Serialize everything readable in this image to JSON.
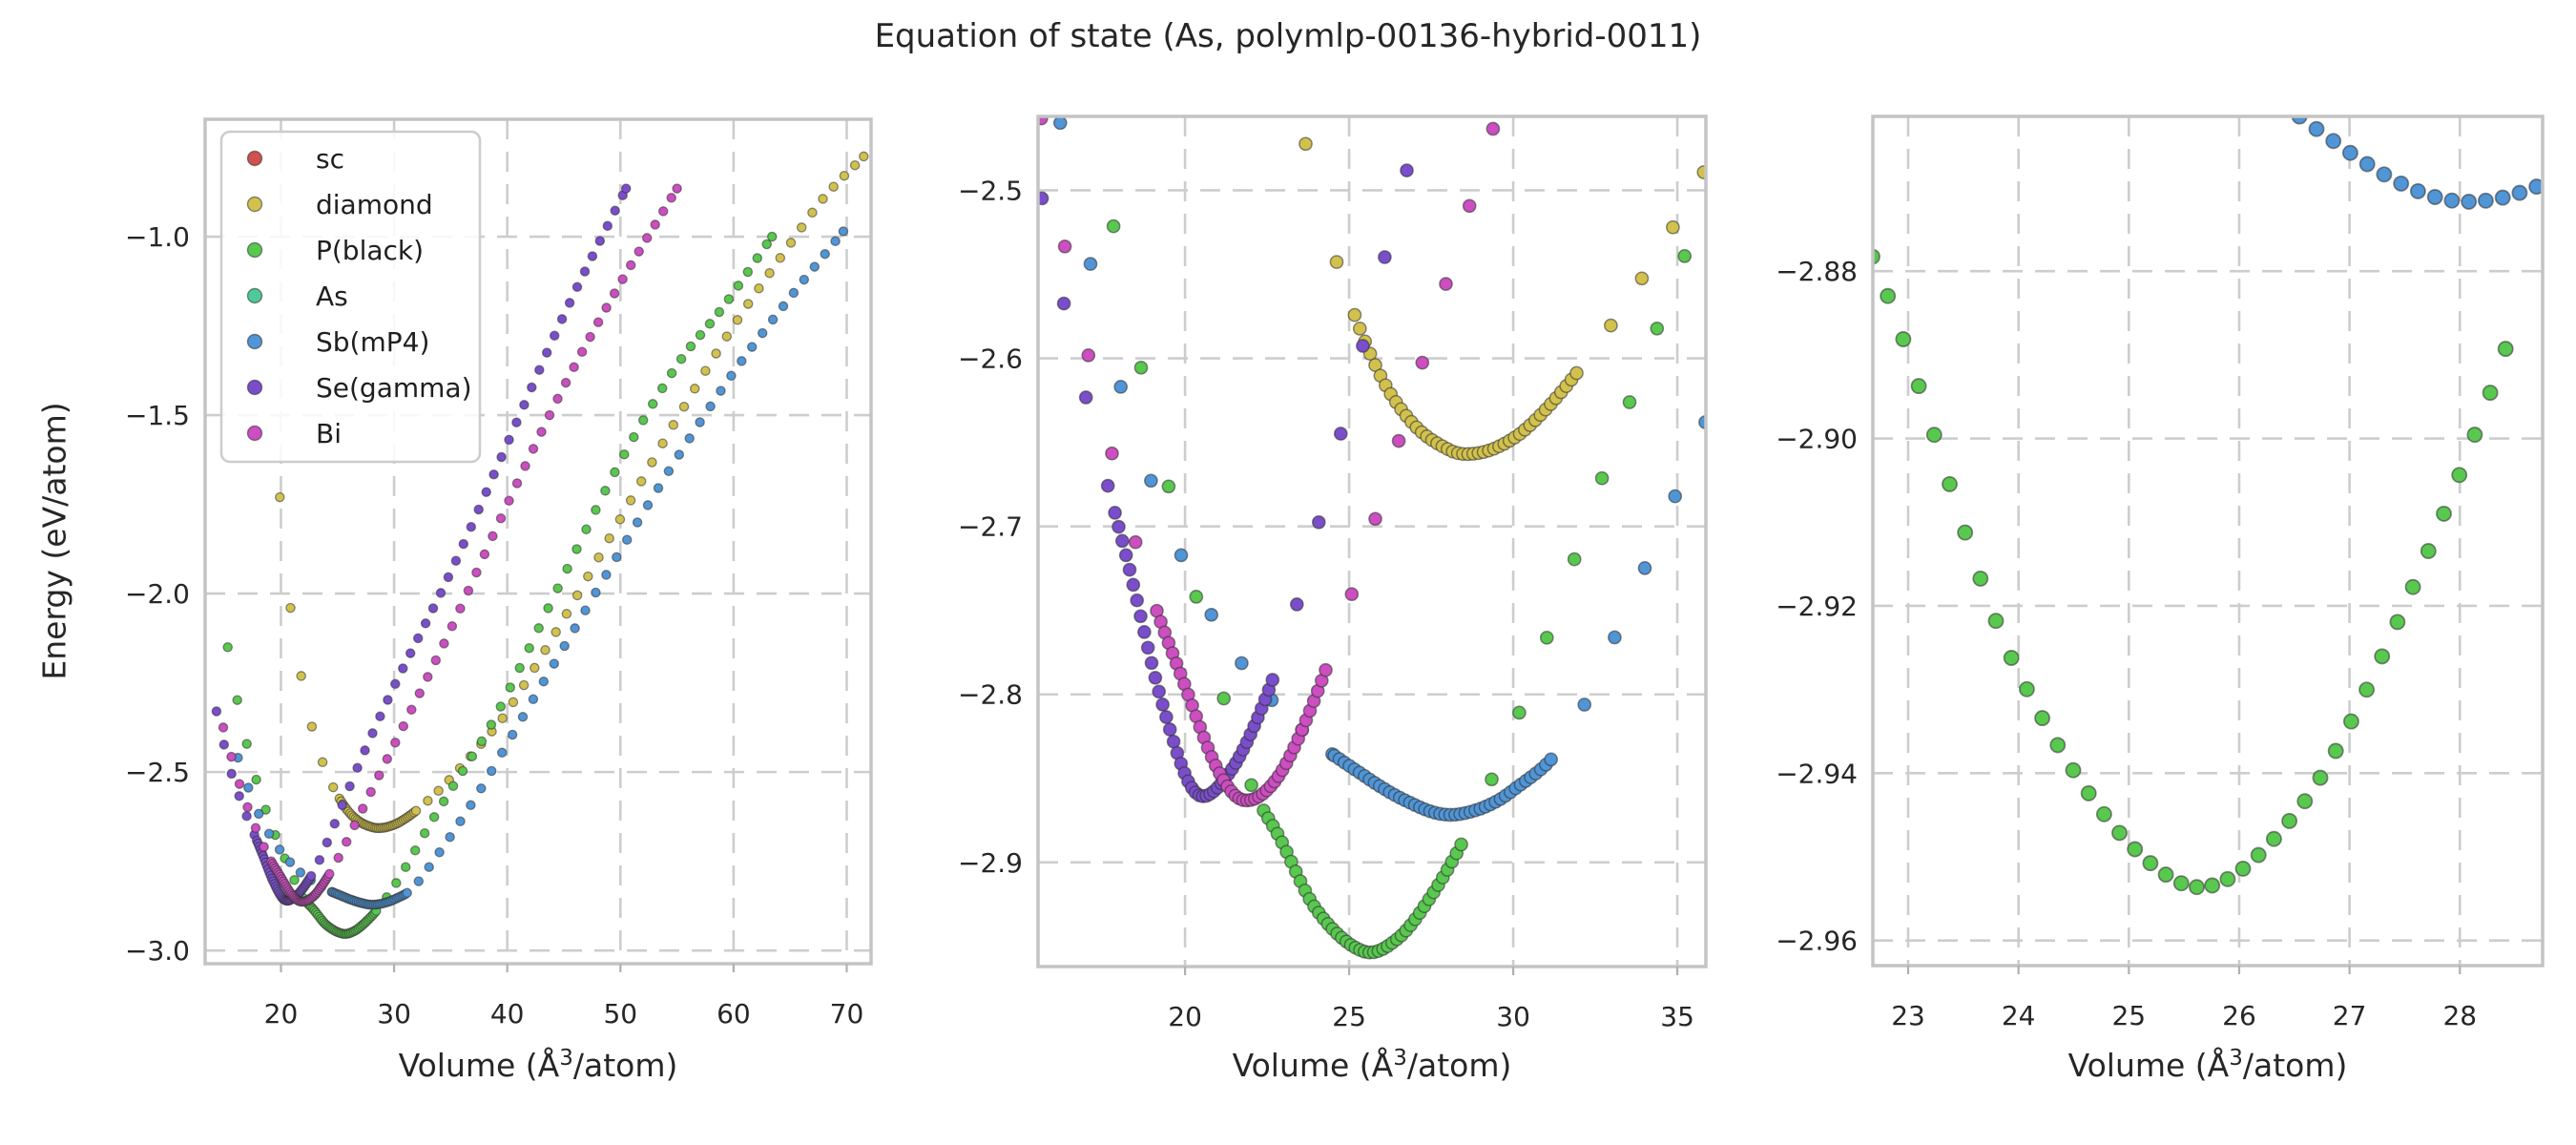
{
  "title": "Equation of state (As, polymlp-00136-hybrid-0011)",
  "ylabel": "Energy (eV/atom)",
  "xlabel": {
    "pre": "Volume (Å",
    "sup": "3",
    "post": "/atom)"
  },
  "style": {
    "background": "#ffffff",
    "text_color": "#262626",
    "grid_color": "#cdcdcd",
    "spine_color": "#c4c4c4",
    "marker_edge": "rgba(45,45,45,0.55)",
    "legend_border": "#cccccc"
  },
  "legend": {
    "entries": [
      {
        "label": "sc",
        "color": "#cd5250"
      },
      {
        "label": "diamond",
        "color": "#d2c24d"
      },
      {
        "label": "P(black)",
        "color": "#58c84e"
      },
      {
        "label": "As",
        "color": "#4ec997"
      },
      {
        "label": "Sb(mP4)",
        "color": "#5095d6"
      },
      {
        "label": "Se(gamma)",
        "color": "#7a4ecb"
      },
      {
        "label": "Bi",
        "color": "#cc4ec0"
      }
    ]
  },
  "chart_data": {
    "type": "scatter",
    "description": "Energy-volume equation of state curves for As in 7 candidate structures; three panels show the same data at increasing zoom toward the P(black) minimum.",
    "sampling": {
      "dense_range": [
        0.88,
        1.12
      ],
      "dense_step": 0.0055,
      "sparse_step": 0.033
    },
    "series": [
      {
        "name": "sc",
        "color": "#cd5250",
        "control_points": [],
        "note": "legend entry only; no points visible in plotted range"
      },
      {
        "name": "diamond",
        "color": "#d2c24d",
        "V0": 28.6,
        "E0": -2.657,
        "s_min": 0.6958,
        "s_max": 2.5,
        "control_points": [
          [
            19.9,
            -1.73
          ],
          [
            20.3,
            -1.9
          ],
          [
            21.0,
            -2.075
          ],
          [
            21.7,
            -2.215
          ],
          [
            22.4,
            -2.33
          ],
          [
            23.2,
            -2.425
          ],
          [
            24.0,
            -2.5
          ],
          [
            25.0,
            -2.565
          ],
          [
            26.0,
            -2.612
          ],
          [
            27.0,
            -2.64
          ],
          [
            28.0,
            -2.654
          ],
          [
            28.6,
            -2.657
          ],
          [
            29.5,
            -2.653
          ],
          [
            30.5,
            -2.64
          ],
          [
            32.0,
            -2.607
          ],
          [
            34.0,
            -2.55
          ],
          [
            35.5,
            -2.5
          ],
          [
            38.0,
            -2.41
          ],
          [
            40.0,
            -2.33
          ],
          [
            45.0,
            -2.07
          ],
          [
            50.0,
            -1.79
          ],
          [
            55.0,
            -1.51
          ],
          [
            60.0,
            -1.25
          ],
          [
            65.0,
            -1.02
          ],
          [
            68.0,
            -0.89
          ],
          [
            71.5,
            -0.775
          ]
        ]
      },
      {
        "name": "P(black)",
        "color": "#58c84e",
        "V0": 25.45,
        "E0": -2.953,
        "s_min": 0.6012,
        "s_max": 2.4912,
        "control_points": [
          [
            15.3,
            -2.15
          ],
          [
            16.4,
            -2.34
          ],
          [
            17.5,
            -2.485
          ],
          [
            18.6,
            -2.6
          ],
          [
            19.8,
            -2.7
          ],
          [
            21.0,
            -2.79
          ],
          [
            22.0,
            -2.853
          ],
          [
            22.9,
            -2.886
          ],
          [
            24.0,
            -2.928
          ],
          [
            25.45,
            -2.953
          ],
          [
            26.5,
            -2.945
          ],
          [
            27.5,
            -2.92
          ],
          [
            28.55,
            -2.884
          ],
          [
            30.0,
            -2.82
          ],
          [
            31.5,
            -2.74
          ],
          [
            33.0,
            -2.655
          ],
          [
            35.5,
            -2.525
          ],
          [
            38.0,
            -2.4
          ],
          [
            40.0,
            -2.28
          ],
          [
            45.0,
            -1.95
          ],
          [
            50.0,
            -1.63
          ],
          [
            55.0,
            -1.36
          ],
          [
            59.0,
            -1.2
          ],
          [
            63.4,
            -1.0
          ]
        ]
      },
      {
        "name": "As",
        "color": "#4ec997",
        "control_points": [],
        "note": "legend entry only; no points visible in plotted range"
      },
      {
        "name": "Sb(mP4)",
        "color": "#5095d6",
        "V0": 27.9,
        "E0": -2.8715,
        "s_min": 0.5806,
        "s_max": 2.498,
        "control_points": [
          [
            16.2,
            -2.46
          ],
          [
            17.8,
            -2.6
          ],
          [
            19.5,
            -2.7
          ],
          [
            21.5,
            -2.775
          ],
          [
            23.5,
            -2.82
          ],
          [
            25.5,
            -2.849
          ],
          [
            26.7,
            -2.863
          ],
          [
            27.9,
            -2.8715
          ],
          [
            29.0,
            -2.868
          ],
          [
            30.0,
            -2.857
          ],
          [
            31.5,
            -2.83
          ],
          [
            33.0,
            -2.77
          ],
          [
            35.5,
            -2.655
          ],
          [
            38.0,
            -2.53
          ],
          [
            40.0,
            -2.42
          ],
          [
            45.0,
            -2.15
          ],
          [
            50.0,
            -1.88
          ],
          [
            55.0,
            -1.62
          ],
          [
            60.0,
            -1.38
          ],
          [
            65.0,
            -1.17
          ],
          [
            69.7,
            -0.985
          ]
        ]
      },
      {
        "name": "Se(gamma)",
        "color": "#7a4ecb",
        "V0": 20.3,
        "E0": -2.858,
        "s_min": 0.7044,
        "s_max": 2.4877,
        "control_points": [
          [
            14.3,
            -2.33
          ],
          [
            15.5,
            -2.49
          ],
          [
            17.0,
            -2.625
          ],
          [
            18.3,
            -2.725
          ],
          [
            19.3,
            -2.805
          ],
          [
            20.3,
            -2.858
          ],
          [
            21.3,
            -2.848
          ],
          [
            22.4,
            -2.805
          ],
          [
            23.5,
            -2.74
          ],
          [
            25.0,
            -2.625
          ],
          [
            27.0,
            -2.47
          ],
          [
            30.0,
            -2.26
          ],
          [
            35.0,
            -1.94
          ],
          [
            40.0,
            -1.58
          ],
          [
            45.0,
            -1.22
          ],
          [
            50.5,
            -0.865
          ]
        ]
      },
      {
        "name": "Bi",
        "color": "#cc4ec0",
        "V0": 21.75,
        "E0": -2.863,
        "s_min": 0.6851,
        "s_max": 2.5287,
        "control_points": [
          [
            14.9,
            -2.375
          ],
          [
            16.2,
            -2.52
          ],
          [
            17.5,
            -2.635
          ],
          [
            18.8,
            -2.73
          ],
          [
            20.0,
            -2.795
          ],
          [
            21.0,
            -2.845
          ],
          [
            21.8,
            -2.863
          ],
          [
            22.8,
            -2.85
          ],
          [
            23.8,
            -2.81
          ],
          [
            25.0,
            -2.745
          ],
          [
            26.5,
            -2.65
          ],
          [
            28.5,
            -2.52
          ],
          [
            31.0,
            -2.36
          ],
          [
            35.0,
            -2.1
          ],
          [
            40.0,
            -1.75
          ],
          [
            45.0,
            -1.42
          ],
          [
            50.0,
            -1.13
          ],
          [
            55.0,
            -0.865
          ]
        ]
      }
    ],
    "panels": [
      {
        "id": "overview",
        "xlim": [
          13.3,
          72.15
        ],
        "ylim": [
          -3.037,
          -0.671
        ],
        "xticks": [
          {
            "v": 20,
            "label": "20"
          },
          {
            "v": 30,
            "label": "30"
          },
          {
            "v": 40,
            "label": "40"
          },
          {
            "v": 50,
            "label": "50"
          },
          {
            "v": 60,
            "label": "60"
          },
          {
            "v": 70,
            "label": "70"
          }
        ],
        "yticks": [
          {
            "v": -1.0,
            "label": "−1.0"
          },
          {
            "v": -1.5,
            "label": "−1.5"
          },
          {
            "v": -2.0,
            "label": "−2.0"
          },
          {
            "v": -2.5,
            "label": "−2.5"
          },
          {
            "v": -3.0,
            "label": "−3.0"
          }
        ],
        "marker_radius": 4.6,
        "edge_width": 1.3,
        "show_legend": true
      },
      {
        "id": "zoom-mid",
        "xlim": [
          15.52,
          35.87
        ],
        "ylim": [
          -2.962,
          -2.456
        ],
        "xticks": [
          {
            "v": 20,
            "label": "20"
          },
          {
            "v": 25,
            "label": "25"
          },
          {
            "v": 30,
            "label": "30"
          },
          {
            "v": 35,
            "label": "35"
          }
        ],
        "yticks": [
          {
            "v": -2.5,
            "label": "−2.5"
          },
          {
            "v": -2.6,
            "label": "−2.6"
          },
          {
            "v": -2.7,
            "label": "−2.7"
          },
          {
            "v": -2.8,
            "label": "−2.8"
          },
          {
            "v": -2.9,
            "label": "−2.9"
          }
        ],
        "marker_radius": 6.6,
        "edge_width": 1.5,
        "show_legend": false
      },
      {
        "id": "zoom-min",
        "xlim": [
          22.68,
          28.75
        ],
        "ylim": [
          -2.963,
          -2.8615
        ],
        "xticks": [
          {
            "v": 23,
            "label": "23"
          },
          {
            "v": 24,
            "label": "24"
          },
          {
            "v": 25,
            "label": "25"
          },
          {
            "v": 26,
            "label": "26"
          },
          {
            "v": 27,
            "label": "27"
          },
          {
            "v": 28,
            "label": "28"
          }
        ],
        "yticks": [
          {
            "v": -2.88,
            "label": "−2.88"
          },
          {
            "v": -2.9,
            "label": "−2.90"
          },
          {
            "v": -2.92,
            "label": "−2.92"
          },
          {
            "v": -2.94,
            "label": "−2.94"
          },
          {
            "v": -2.96,
            "label": "−2.96"
          }
        ],
        "marker_radius": 7.6,
        "edge_width": 1.7,
        "show_legend": false
      }
    ]
  }
}
